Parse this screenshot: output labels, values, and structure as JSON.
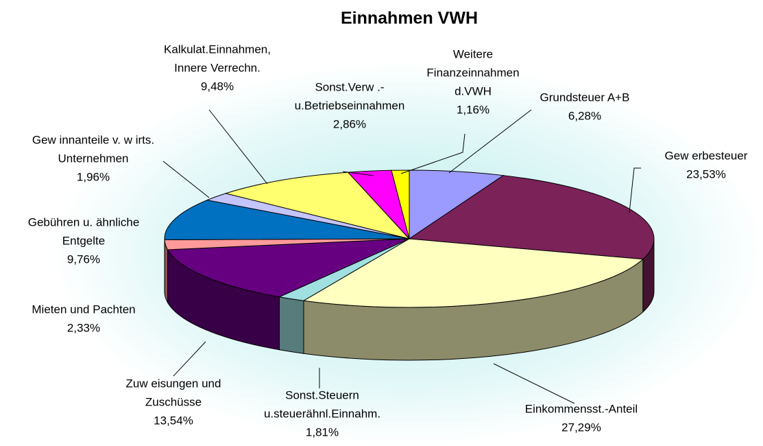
{
  "chart_data": {
    "type": "pie3d",
    "title": "Einnahmen VWH",
    "categories": [
      [
        "Grundsteuer A+B"
      ],
      [
        "Gew erbesteuer"
      ],
      [
        "Einkommensst.-Anteil"
      ],
      [
        "Sonst.Steuern",
        "u.steuerähnl.Einnahm."
      ],
      [
        "Zuw eisungen und",
        "Zuschüsse"
      ],
      [
        "Mieten und Pachten"
      ],
      [
        "Gebühren u. ähnliche",
        "Entgelte"
      ],
      [
        "Gew innanteile v. w irts.",
        "Unternehmen"
      ],
      [
        "Kalkulat.Einnahmen,",
        "Innere Verrechn."
      ],
      [
        "Sonst.Verw .-",
        "u.Betriebseinnahmen"
      ],
      [
        "Weitere",
        "Finanzeinnahmen",
        "d.VWH"
      ]
    ],
    "values": [
      6.28,
      23.53,
      27.29,
      1.81,
      13.54,
      2.33,
      9.76,
      1.96,
      9.48,
      2.86,
      1.16
    ],
    "value_labels": [
      "6,28%",
      "23,53%",
      "27,29%",
      "1,81%",
      "13,54%",
      "2,33%",
      "9,76%",
      "1,96%",
      "9,48%",
      "2,86%",
      "1,16%"
    ],
    "colors": [
      "#9a9aff",
      "#7b2259",
      "#ffffc0",
      "#a0e0e0",
      "#660080",
      "#ff9a9a",
      "#0070c0",
      "#c4c4ff",
      "#ffff70",
      "#ff00ff",
      "#ffff00"
    ]
  }
}
